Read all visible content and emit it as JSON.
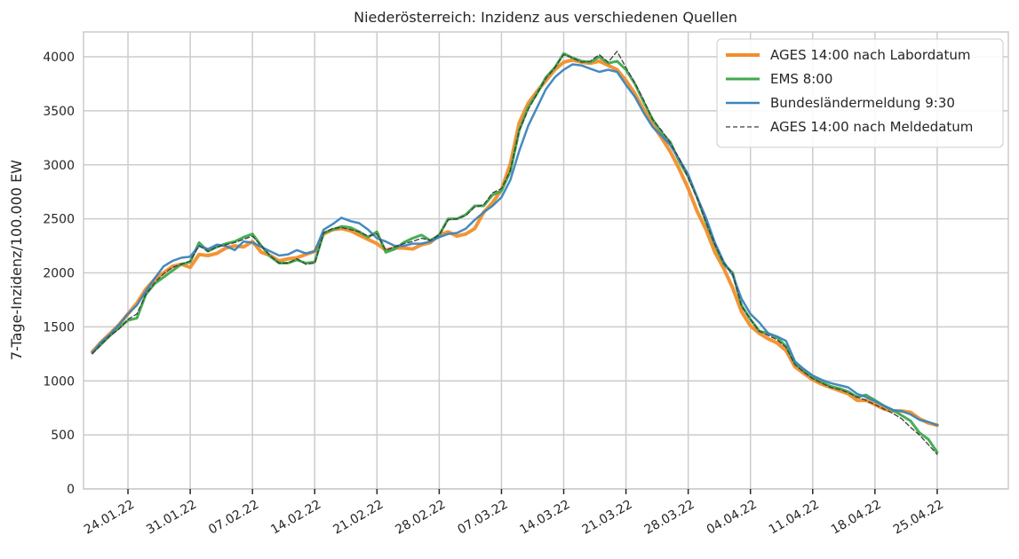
{
  "chart_data": {
    "type": "line",
    "title": "Niederösterreich: Inzidenz aus verschiedenen Quellen",
    "xlabel": "",
    "ylabel": "7-Tage-Inzidenz/100.000 EW",
    "ylim": [
      0,
      4230
    ],
    "yticks": [
      0,
      500,
      1000,
      1500,
      2000,
      2500,
      3000,
      3500,
      4000
    ],
    "x_start": "2022-01-20",
    "x_range": [
      "2022-01-19",
      "2022-05-03"
    ],
    "xtick_dates": [
      "2022-01-24",
      "2022-01-31",
      "2022-02-07",
      "2022-02-14",
      "2022-02-21",
      "2022-02-28",
      "2022-03-07",
      "2022-03-14",
      "2022-03-21",
      "2022-03-28",
      "2022-04-04",
      "2022-04-11",
      "2022-04-18",
      "2022-04-25"
    ],
    "xtick_labels": [
      "24.01.22",
      "31.01.22",
      "07.02.22",
      "14.02.22",
      "21.02.22",
      "28.02.22",
      "07.03.22",
      "14.03.22",
      "21.03.22",
      "28.03.22",
      "04.04.22",
      "11.04.22",
      "18.04.22",
      "25.04.22"
    ],
    "grid": true,
    "legend_position": "top-right",
    "series": [
      {
        "name": "AGES 14:00 nach Labordatum",
        "color": "#f28e2b",
        "style": "solid",
        "values": [
          1270,
          1360,
          1440,
          1520,
          1620,
          1720,
          1850,
          1940,
          2000,
          2060,
          2080,
          2050,
          2170,
          2160,
          2180,
          2230,
          2250,
          2240,
          2290,
          2190,
          2160,
          2110,
          2130,
          2140,
          2170,
          2200,
          2360,
          2400,
          2410,
          2390,
          2350,
          2310,
          2270,
          2210,
          2230,
          2230,
          2220,
          2260,
          2280,
          2350,
          2380,
          2340,
          2360,
          2410,
          2560,
          2650,
          2770,
          3010,
          3390,
          3570,
          3680,
          3780,
          3880,
          3950,
          3970,
          3950,
          3940,
          3960,
          3920,
          3880,
          3780,
          3660,
          3510,
          3370,
          3250,
          3120,
          2960,
          2780,
          2570,
          2400,
          2190,
          2040,
          1860,
          1640,
          1510,
          1440,
          1390,
          1350,
          1280,
          1130,
          1070,
          1010,
          970,
          940,
          910,
          880,
          820,
          820,
          780,
          740,
          720,
          720,
          710,
          650,
          610,
          590
        ]
      },
      {
        "name": "EMS 8:00",
        "color": "#3daa4b",
        "style": "solid",
        "values": [
          1260,
          1340,
          1420,
          1490,
          1560,
          1580,
          1800,
          1900,
          1960,
          2020,
          2080,
          2100,
          2280,
          2200,
          2240,
          2270,
          2290,
          2330,
          2360,
          2250,
          2150,
          2090,
          2090,
          2120,
          2090,
          2100,
          2370,
          2400,
          2430,
          2420,
          2380,
          2330,
          2380,
          2190,
          2220,
          2280,
          2320,
          2350,
          2300,
          2350,
          2500,
          2500,
          2540,
          2620,
          2620,
          2720,
          2760,
          2940,
          3320,
          3530,
          3660,
          3810,
          3900,
          4030,
          3990,
          3960,
          3950,
          4000,
          3940,
          3960,
          3880,
          3750,
          3580,
          3420,
          3300,
          3210,
          3030,
          2890,
          2700,
          2470,
          2260,
          2080,
          2000,
          1700,
          1570,
          1460,
          1440,
          1400,
          1320,
          1160,
          1090,
          1030,
          990,
          950,
          930,
          900,
          850,
          870,
          820,
          770,
          730,
          680,
          630,
          520,
          460,
          340
        ]
      },
      {
        "name": "Bundesländermeldung 9:30",
        "color": "#3b84bd",
        "style": "solid",
        "values": [
          1260,
          1360,
          1430,
          1520,
          1620,
          1700,
          1830,
          1950,
          2060,
          2110,
          2140,
          2150,
          2250,
          2220,
          2260,
          2250,
          2210,
          2290,
          2280,
          2240,
          2200,
          2160,
          2170,
          2210,
          2180,
          2200,
          2400,
          2450,
          2510,
          2480,
          2460,
          2400,
          2320,
          2290,
          2250,
          2250,
          2270,
          2270,
          2290,
          2330,
          2360,
          2370,
          2410,
          2490,
          2560,
          2620,
          2700,
          2860,
          3130,
          3360,
          3530,
          3700,
          3810,
          3880,
          3930,
          3920,
          3890,
          3860,
          3880,
          3860,
          3740,
          3630,
          3480,
          3350,
          3270,
          3180,
          3050,
          2910,
          2700,
          2510,
          2280,
          2100,
          1980,
          1760,
          1620,
          1540,
          1440,
          1410,
          1370,
          1180,
          1110,
          1050,
          1010,
          980,
          960,
          940,
          880,
          850,
          810,
          770,
          730,
          720,
          690,
          640,
          620,
          590
        ]
      },
      {
        "name": "AGES 14:00 nach Meldedatum",
        "color": "#3d3d3d",
        "style": "dashed",
        "values": [
          1250,
          1340,
          1420,
          1480,
          1570,
          1620,
          1800,
          1910,
          1990,
          2050,
          2080,
          2110,
          2250,
          2200,
          2240,
          2260,
          2280,
          2310,
          2340,
          2250,
          2160,
          2090,
          2090,
          2130,
          2080,
          2090,
          2370,
          2410,
          2420,
          2400,
          2380,
          2340,
          2360,
          2210,
          2240,
          2270,
          2290,
          2320,
          2300,
          2350,
          2490,
          2500,
          2530,
          2610,
          2630,
          2740,
          2780,
          2950,
          3320,
          3510,
          3660,
          3800,
          3900,
          4020,
          3990,
          3950,
          3960,
          4020,
          3950,
          4050,
          3900,
          3760,
          3600,
          3420,
          3320,
          3200,
          3060,
          2880,
          2690,
          2470,
          2260,
          2090,
          1990,
          1690,
          1570,
          1460,
          1420,
          1380,
          1310,
          1150,
          1080,
          1020,
          980,
          940,
          920,
          890,
          850,
          820,
          780,
          740,
          700,
          650,
          570,
          500,
          410,
          320
        ]
      }
    ]
  }
}
